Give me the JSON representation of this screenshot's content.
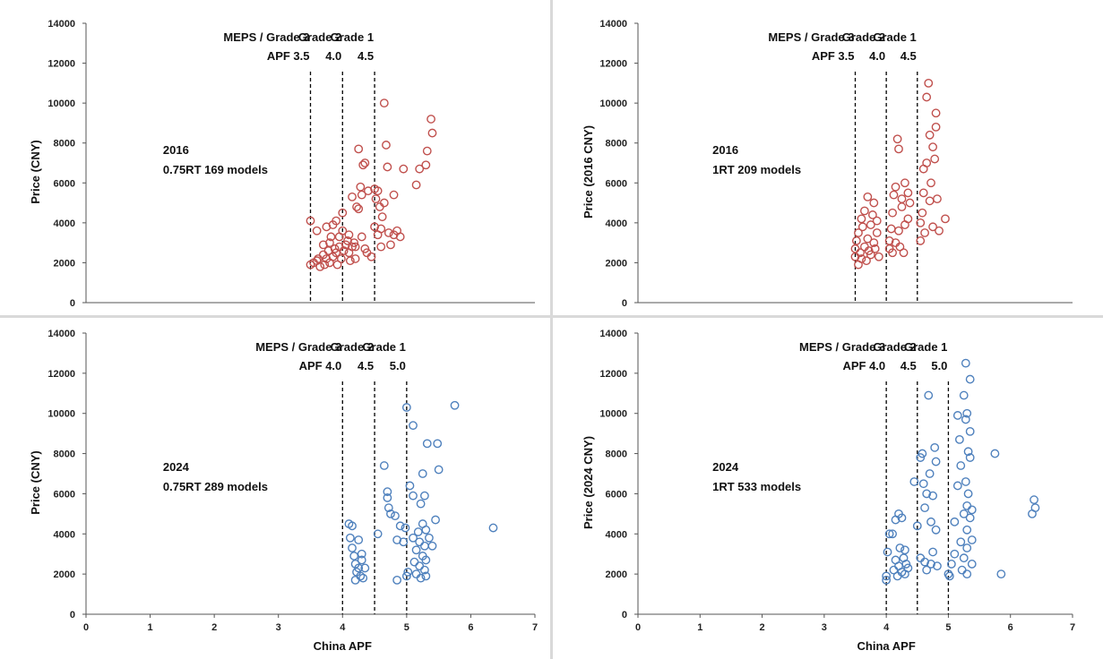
{
  "colors": {
    "red": "#C0504D",
    "blue": "#4F81BD",
    "threshold": "#000000",
    "axis": "#555555"
  },
  "chart_data": [
    {
      "type": "scatter",
      "id": "tl",
      "xlabel": "",
      "ylabel": "Price (CNY)",
      "xlim": [
        0,
        7
      ],
      "ylim": [
        0,
        14000
      ],
      "xticks": [
        "0",
        "1",
        "2",
        "3",
        "4",
        "5",
        "6",
        "7"
      ],
      "yticks": [
        "0",
        "2000",
        "4000",
        "6000",
        "8000",
        "10000",
        "12000",
        "14000"
      ],
      "color": "red",
      "annotation": [
        "2016",
        "0.75RT 169 models"
      ],
      "thresholds": [
        {
          "x": 3.5,
          "labels": [
            "MEPS / Grade 3",
            "APF 3.5"
          ]
        },
        {
          "x": 4.0,
          "labels": [
            "Grade 2",
            "4.0"
          ]
        },
        {
          "x": 4.5,
          "labels": [
            "Grade 1",
            "4.5"
          ]
        }
      ],
      "points": [
        [
          3.5,
          1900
        ],
        [
          3.5,
          4100
        ],
        [
          3.55,
          2000
        ],
        [
          3.6,
          2100
        ],
        [
          3.6,
          3600
        ],
        [
          3.62,
          2200
        ],
        [
          3.65,
          1800
        ],
        [
          3.7,
          2400
        ],
        [
          3.7,
          2900
        ],
        [
          3.72,
          1900
        ],
        [
          3.75,
          2200
        ],
        [
          3.75,
          3800
        ],
        [
          3.78,
          2600
        ],
        [
          3.8,
          2000
        ],
        [
          3.8,
          3000
        ],
        [
          3.82,
          3300
        ],
        [
          3.85,
          2300
        ],
        [
          3.85,
          3900
        ],
        [
          3.88,
          2700
        ],
        [
          3.9,
          4100
        ],
        [
          3.9,
          2500
        ],
        [
          3.92,
          1900
        ],
        [
          3.95,
          3300
        ],
        [
          3.95,
          2800
        ],
        [
          3.98,
          2200
        ],
        [
          4.0,
          4500
        ],
        [
          4.0,
          3600
        ],
        [
          4.02,
          2600
        ],
        [
          4.05,
          2900
        ],
        [
          4.08,
          3100
        ],
        [
          4.1,
          2500
        ],
        [
          4.1,
          3400
        ],
        [
          4.12,
          2100
        ],
        [
          4.15,
          2800
        ],
        [
          4.15,
          5300
        ],
        [
          4.18,
          3000
        ],
        [
          4.2,
          2200
        ],
        [
          4.2,
          2800
        ],
        [
          4.22,
          4800
        ],
        [
          4.25,
          4700
        ],
        [
          4.25,
          7700
        ],
        [
          4.28,
          5800
        ],
        [
          4.3,
          5400
        ],
        [
          4.3,
          3300
        ],
        [
          4.32,
          6900
        ],
        [
          4.35,
          2700
        ],
        [
          4.35,
          7000
        ],
        [
          4.38,
          2500
        ],
        [
          4.4,
          5600
        ],
        [
          4.45,
          2300
        ],
        [
          4.5,
          3800
        ],
        [
          4.5,
          5700
        ],
        [
          4.52,
          5200
        ],
        [
          4.55,
          3400
        ],
        [
          4.55,
          5600
        ],
        [
          4.58,
          4800
        ],
        [
          4.6,
          2800
        ],
        [
          4.6,
          3700
        ],
        [
          4.62,
          4300
        ],
        [
          4.65,
          5000
        ],
        [
          4.65,
          10000
        ],
        [
          4.68,
          7900
        ],
        [
          4.7,
          6800
        ],
        [
          4.72,
          3500
        ],
        [
          4.75,
          2900
        ],
        [
          4.8,
          3400
        ],
        [
          4.8,
          5400
        ],
        [
          4.85,
          3600
        ],
        [
          4.9,
          3300
        ],
        [
          4.95,
          6700
        ],
        [
          5.15,
          5900
        ],
        [
          5.2,
          6700
        ],
        [
          5.3,
          6900
        ],
        [
          5.32,
          7600
        ],
        [
          5.38,
          9200
        ],
        [
          5.4,
          8500
        ]
      ]
    },
    {
      "type": "scatter",
      "id": "tr",
      "xlabel": "",
      "ylabel": "Price (2016 CNY)",
      "xlim": [
        0,
        7
      ],
      "ylim": [
        0,
        14000
      ],
      "xticks": [
        "0",
        "1",
        "2",
        "3",
        "4",
        "5",
        "6",
        "7"
      ],
      "yticks": [
        "0",
        "2000",
        "4000",
        "6000",
        "8000",
        "10000",
        "12000",
        "14000"
      ],
      "color": "red",
      "annotation": [
        "2016",
        "1RT 209 models"
      ],
      "thresholds": [
        {
          "x": 3.5,
          "labels": [
            "MEPS / Grade 3",
            "APF 3.5"
          ]
        },
        {
          "x": 4.0,
          "labels": [
            "Grade 2",
            "4.0"
          ]
        },
        {
          "x": 4.5,
          "labels": [
            "Grade 1",
            "4.5"
          ]
        }
      ],
      "points": [
        [
          3.5,
          2300
        ],
        [
          3.5,
          2700
        ],
        [
          3.52,
          3100
        ],
        [
          3.55,
          1900
        ],
        [
          3.55,
          3500
        ],
        [
          3.58,
          2500
        ],
        [
          3.6,
          4200
        ],
        [
          3.6,
          2200
        ],
        [
          3.62,
          3800
        ],
        [
          3.65,
          2800
        ],
        [
          3.65,
          4600
        ],
        [
          3.68,
          2100
        ],
        [
          3.7,
          3200
        ],
        [
          3.7,
          5300
        ],
        [
          3.72,
          2600
        ],
        [
          3.75,
          3900
        ],
        [
          3.75,
          2400
        ],
        [
          3.78,
          4400
        ],
        [
          3.8,
          3000
        ],
        [
          3.8,
          5000
        ],
        [
          3.82,
          2700
        ],
        [
          3.85,
          4100
        ],
        [
          3.85,
          3500
        ],
        [
          3.88,
          2300
        ],
        [
          4.05,
          2700
        ],
        [
          4.05,
          3100
        ],
        [
          4.08,
          3700
        ],
        [
          4.1,
          2500
        ],
        [
          4.1,
          4500
        ],
        [
          4.12,
          5400
        ],
        [
          4.15,
          3000
        ],
        [
          4.15,
          5800
        ],
        [
          4.18,
          8200
        ],
        [
          4.2,
          7700
        ],
        [
          4.2,
          3600
        ],
        [
          4.22,
          2800
        ],
        [
          4.25,
          4800
        ],
        [
          4.25,
          5200
        ],
        [
          4.28,
          2500
        ],
        [
          4.3,
          3900
        ],
        [
          4.3,
          6000
        ],
        [
          4.35,
          4200
        ],
        [
          4.35,
          5500
        ],
        [
          4.38,
          5000
        ],
        [
          4.55,
          3100
        ],
        [
          4.55,
          4000
        ],
        [
          4.58,
          4500
        ],
        [
          4.6,
          5500
        ],
        [
          4.6,
          6700
        ],
        [
          4.62,
          3500
        ],
        [
          4.65,
          10300
        ],
        [
          4.65,
          7000
        ],
        [
          4.68,
          11000
        ],
        [
          4.7,
          8400
        ],
        [
          4.7,
          5100
        ],
        [
          4.72,
          6000
        ],
        [
          4.75,
          7800
        ],
        [
          4.75,
          3800
        ],
        [
          4.78,
          7200
        ],
        [
          4.8,
          9500
        ],
        [
          4.8,
          8800
        ],
        [
          4.82,
          5200
        ],
        [
          4.85,
          3600
        ],
        [
          4.95,
          4200
        ]
      ]
    },
    {
      "type": "scatter",
      "id": "bl",
      "xlabel": "China APF",
      "ylabel": "Price (CNY)",
      "xlim": [
        0,
        7
      ],
      "ylim": [
        0,
        14000
      ],
      "xticks": [
        "0",
        "1",
        "2",
        "3",
        "4",
        "5",
        "6",
        "7"
      ],
      "yticks": [
        "0",
        "2000",
        "4000",
        "6000",
        "8000",
        "10000",
        "12000",
        "14000"
      ],
      "color": "blue",
      "annotation": [
        "2024",
        "0.75RT 289 models"
      ],
      "thresholds": [
        {
          "x": 4.0,
          "labels": [
            "MEPS / Grade 3",
            "APF 4.0"
          ]
        },
        {
          "x": 4.5,
          "labels": [
            "Grade 2",
            "4.5"
          ]
        },
        {
          "x": 5.0,
          "labels": [
            "Grade 1",
            "5.0"
          ]
        }
      ],
      "points": [
        [
          4.1,
          4500
        ],
        [
          4.15,
          4400
        ],
        [
          4.12,
          3800
        ],
        [
          4.15,
          3300
        ],
        [
          4.18,
          2900
        ],
        [
          4.2,
          2500
        ],
        [
          4.2,
          1700
        ],
        [
          4.22,
          2100
        ],
        [
          4.25,
          3700
        ],
        [
          4.25,
          2300
        ],
        [
          4.28,
          1900
        ],
        [
          4.3,
          3000
        ],
        [
          4.3,
          2700
        ],
        [
          4.32,
          1800
        ],
        [
          4.35,
          2300
        ],
        [
          4.55,
          4000
        ],
        [
          4.65,
          7400
        ],
        [
          4.7,
          6100
        ],
        [
          4.7,
          5800
        ],
        [
          4.72,
          5300
        ],
        [
          4.75,
          5000
        ],
        [
          4.82,
          4900
        ],
        [
          4.85,
          3700
        ],
        [
          4.85,
          1700
        ],
        [
          4.9,
          4400
        ],
        [
          4.95,
          3600
        ],
        [
          4.98,
          4300
        ],
        [
          5.0,
          10300
        ],
        [
          5.0,
          1900
        ],
        [
          5.02,
          2100
        ],
        [
          5.05,
          6400
        ],
        [
          5.1,
          9400
        ],
        [
          5.1,
          5900
        ],
        [
          5.1,
          3800
        ],
        [
          5.12,
          2600
        ],
        [
          5.15,
          3200
        ],
        [
          5.15,
          2000
        ],
        [
          5.18,
          4100
        ],
        [
          5.2,
          3600
        ],
        [
          5.2,
          2400
        ],
        [
          5.22,
          5500
        ],
        [
          5.22,
          1800
        ],
        [
          5.25,
          7000
        ],
        [
          5.25,
          4500
        ],
        [
          5.25,
          2900
        ],
        [
          5.28,
          5900
        ],
        [
          5.28,
          3400
        ],
        [
          5.28,
          2200
        ],
        [
          5.3,
          4200
        ],
        [
          5.3,
          2700
        ],
        [
          5.3,
          1900
        ],
        [
          5.32,
          8500
        ],
        [
          5.35,
          3800
        ],
        [
          5.4,
          3400
        ],
        [
          5.45,
          4700
        ],
        [
          5.48,
          8500
        ],
        [
          5.5,
          7200
        ],
        [
          5.75,
          10400
        ],
        [
          6.35,
          4300
        ]
      ]
    },
    {
      "type": "scatter",
      "id": "br",
      "xlabel": "China APF",
      "ylabel": "Price (2024 CNY)",
      "xlim": [
        0,
        7
      ],
      "ylim": [
        0,
        14000
      ],
      "xticks": [
        "0",
        "1",
        "2",
        "3",
        "4",
        "5",
        "6",
        "7"
      ],
      "yticks": [
        "0",
        "2000",
        "4000",
        "6000",
        "8000",
        "10000",
        "12000",
        "14000"
      ],
      "color": "blue",
      "annotation": [
        "2024",
        "1RT 533 models"
      ],
      "thresholds": [
        {
          "x": 4.0,
          "labels": [
            "MEPS / Grade 3",
            "APF 4.0"
          ]
        },
        {
          "x": 4.5,
          "labels": [
            "Grade 2",
            "4.5"
          ]
        },
        {
          "x": 5.0,
          "labels": [
            "Grade 1",
            "5.0"
          ]
        }
      ],
      "points": [
        [
          4.0,
          1700
        ],
        [
          4.0,
          1900
        ],
        [
          4.02,
          3100
        ],
        [
          4.05,
          4000
        ],
        [
          4.1,
          4000
        ],
        [
          4.12,
          2200
        ],
        [
          4.15,
          2700
        ],
        [
          4.15,
          4700
        ],
        [
          4.18,
          1900
        ],
        [
          4.2,
          5000
        ],
        [
          4.2,
          2400
        ],
        [
          4.22,
          3300
        ],
        [
          4.25,
          2100
        ],
        [
          4.25,
          4800
        ],
        [
          4.28,
          2800
        ],
        [
          4.3,
          3200
        ],
        [
          4.3,
          2000
        ],
        [
          4.32,
          2500
        ],
        [
          4.35,
          2300
        ],
        [
          4.45,
          6600
        ],
        [
          4.5,
          4400
        ],
        [
          4.55,
          2800
        ],
        [
          4.55,
          7800
        ],
        [
          4.58,
          8000
        ],
        [
          4.6,
          6500
        ],
        [
          4.62,
          5300
        ],
        [
          4.62,
          2600
        ],
        [
          4.65,
          2200
        ],
        [
          4.65,
          6000
        ],
        [
          4.68,
          10900
        ],
        [
          4.7,
          7000
        ],
        [
          4.72,
          4600
        ],
        [
          4.72,
          2500
        ],
        [
          4.75,
          5900
        ],
        [
          4.75,
          3100
        ],
        [
          4.78,
          8300
        ],
        [
          4.8,
          7600
        ],
        [
          4.8,
          4200
        ],
        [
          4.82,
          2400
        ],
        [
          5.0,
          2000
        ],
        [
          5.02,
          1900
        ],
        [
          5.05,
          2500
        ],
        [
          5.1,
          4600
        ],
        [
          5.1,
          3000
        ],
        [
          5.15,
          9900
        ],
        [
          5.15,
          6400
        ],
        [
          5.18,
          8700
        ],
        [
          5.2,
          7400
        ],
        [
          5.2,
          3600
        ],
        [
          5.22,
          2200
        ],
        [
          5.25,
          10900
        ],
        [
          5.25,
          5000
        ],
        [
          5.25,
          2800
        ],
        [
          5.28,
          12500
        ],
        [
          5.28,
          9700
        ],
        [
          5.28,
          6600
        ],
        [
          5.3,
          10000
        ],
        [
          5.3,
          5400
        ],
        [
          5.3,
          4200
        ],
        [
          5.3,
          3300
        ],
        [
          5.3,
          2000
        ],
        [
          5.32,
          8100
        ],
        [
          5.32,
          6000
        ],
        [
          5.35,
          9100
        ],
        [
          5.35,
          11700
        ],
        [
          5.35,
          7800
        ],
        [
          5.35,
          4800
        ],
        [
          5.38,
          5200
        ],
        [
          5.38,
          3700
        ],
        [
          5.38,
          2500
        ],
        [
          5.75,
          8000
        ],
        [
          5.85,
          2000
        ],
        [
          6.35,
          5000
        ],
        [
          6.38,
          5700
        ],
        [
          6.4,
          5300
        ]
      ]
    }
  ]
}
